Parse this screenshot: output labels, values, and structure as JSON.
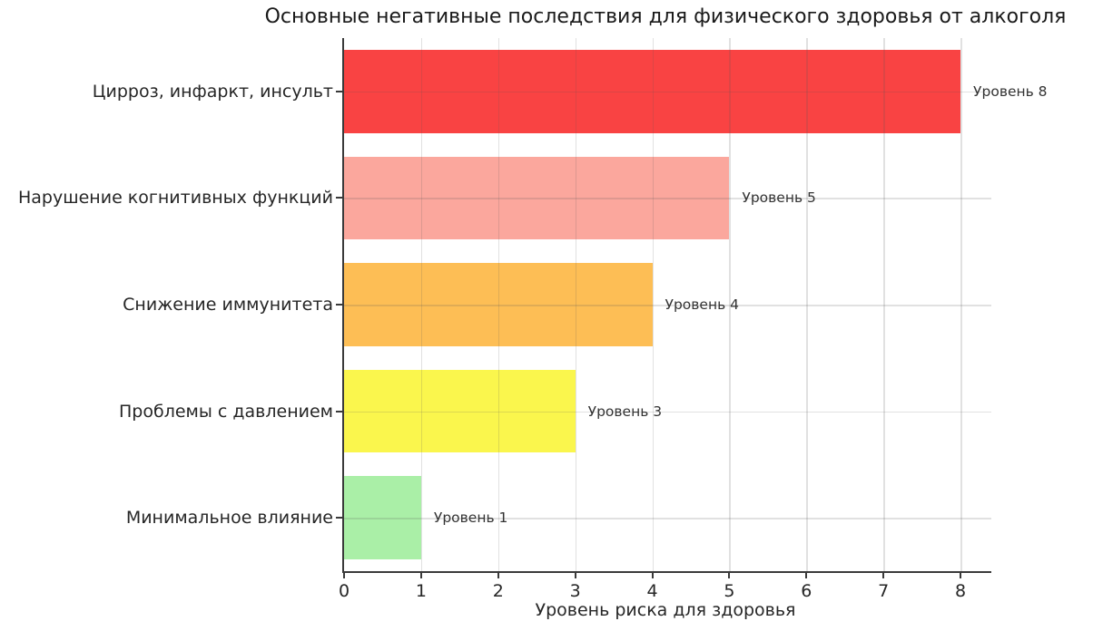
{
  "chart_data": {
    "type": "bar",
    "orientation": "horizontal",
    "title": "Основные негативные последствия для физического здоровья от алкоголя",
    "xlabel": "Уровень риска для здоровья",
    "ylabel": "",
    "categories": [
      "Цирроз, инфаркт, инсульт",
      "Нарушение когнитивных функций",
      "Снижение иммунитета",
      "Проблемы с давлением",
      "Минимальное влияние"
    ],
    "values": [
      8,
      5,
      4,
      3,
      1
    ],
    "bar_labels": [
      "Уровень 8",
      "Уровень 5",
      "Уровень 4",
      "Уровень 3",
      "Уровень 1"
    ],
    "bar_colors": [
      "#f94343",
      "#fba79d",
      "#fdbe55",
      "#faf64d",
      "#aaefa7"
    ],
    "xticks": [
      0,
      1,
      2,
      3,
      4,
      5,
      6,
      7,
      8
    ],
    "xlim": [
      0,
      8.4
    ],
    "grid": true,
    "legend": false,
    "colors": {
      "axis": "#3a3a3a",
      "grid": "rgba(90,90,90,0.18)",
      "title_text": "#1a1a1a",
      "tick_text": "#262626",
      "bar_label_text": "#333333"
    }
  }
}
